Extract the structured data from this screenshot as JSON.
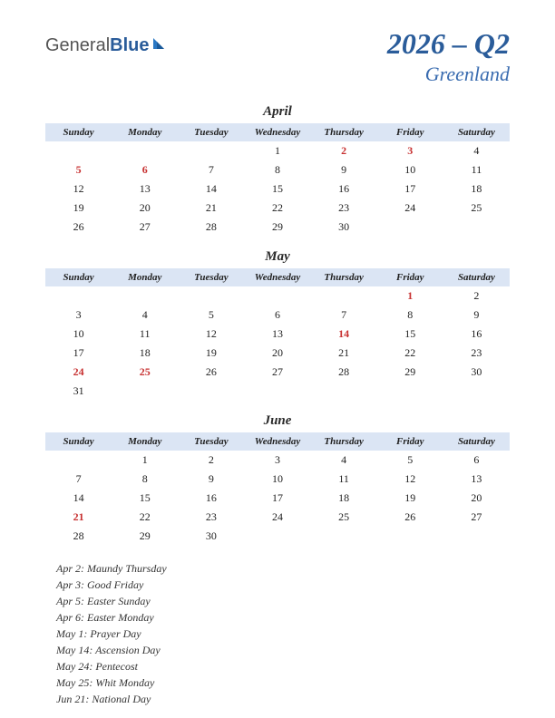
{
  "logo": {
    "part1": "General",
    "part2": "Blue"
  },
  "title": "2026 – Q2",
  "subtitle": "Greenland",
  "day_headers": [
    "Sunday",
    "Monday",
    "Tuesday",
    "Wednesday",
    "Thursday",
    "Friday",
    "Saturday"
  ],
  "colors": {
    "header_bg": "#dbe5f4",
    "title_color": "#2a5c9a",
    "subtitle_color": "#3a6cb0",
    "holiday_color": "#c73030",
    "text_color": "#222222",
    "background": "#ffffff"
  },
  "months": [
    {
      "name": "April",
      "weeks": [
        [
          null,
          null,
          null,
          {
            "d": 1
          },
          {
            "d": 2,
            "h": true
          },
          {
            "d": 3,
            "h": true
          },
          {
            "d": 4
          }
        ],
        [
          {
            "d": 5,
            "h": true
          },
          {
            "d": 6,
            "h": true
          },
          {
            "d": 7
          },
          {
            "d": 8
          },
          {
            "d": 9
          },
          {
            "d": 10
          },
          {
            "d": 11
          }
        ],
        [
          {
            "d": 12
          },
          {
            "d": 13
          },
          {
            "d": 14
          },
          {
            "d": 15
          },
          {
            "d": 16
          },
          {
            "d": 17
          },
          {
            "d": 18
          }
        ],
        [
          {
            "d": 19
          },
          {
            "d": 20
          },
          {
            "d": 21
          },
          {
            "d": 22
          },
          {
            "d": 23
          },
          {
            "d": 24
          },
          {
            "d": 25
          }
        ],
        [
          {
            "d": 26
          },
          {
            "d": 27
          },
          {
            "d": 28
          },
          {
            "d": 29
          },
          {
            "d": 30
          },
          null,
          null
        ]
      ]
    },
    {
      "name": "May",
      "weeks": [
        [
          null,
          null,
          null,
          null,
          null,
          {
            "d": 1,
            "h": true
          },
          {
            "d": 2
          }
        ],
        [
          {
            "d": 3
          },
          {
            "d": 4
          },
          {
            "d": 5
          },
          {
            "d": 6
          },
          {
            "d": 7
          },
          {
            "d": 8
          },
          {
            "d": 9
          }
        ],
        [
          {
            "d": 10
          },
          {
            "d": 11
          },
          {
            "d": 12
          },
          {
            "d": 13
          },
          {
            "d": 14,
            "h": true
          },
          {
            "d": 15
          },
          {
            "d": 16
          }
        ],
        [
          {
            "d": 17
          },
          {
            "d": 18
          },
          {
            "d": 19
          },
          {
            "d": 20
          },
          {
            "d": 21
          },
          {
            "d": 22
          },
          {
            "d": 23
          }
        ],
        [
          {
            "d": 24,
            "h": true
          },
          {
            "d": 25,
            "h": true
          },
          {
            "d": 26
          },
          {
            "d": 27
          },
          {
            "d": 28
          },
          {
            "d": 29
          },
          {
            "d": 30
          }
        ],
        [
          {
            "d": 31
          },
          null,
          null,
          null,
          null,
          null,
          null
        ]
      ]
    },
    {
      "name": "June",
      "weeks": [
        [
          null,
          {
            "d": 1
          },
          {
            "d": 2
          },
          {
            "d": 3
          },
          {
            "d": 4
          },
          {
            "d": 5
          },
          {
            "d": 6
          }
        ],
        [
          {
            "d": 7
          },
          {
            "d": 8
          },
          {
            "d": 9
          },
          {
            "d": 10
          },
          {
            "d": 11
          },
          {
            "d": 12
          },
          {
            "d": 13
          }
        ],
        [
          {
            "d": 14
          },
          {
            "d": 15
          },
          {
            "d": 16
          },
          {
            "d": 17
          },
          {
            "d": 18
          },
          {
            "d": 19
          },
          {
            "d": 20
          }
        ],
        [
          {
            "d": 21,
            "h": true
          },
          {
            "d": 22
          },
          {
            "d": 23
          },
          {
            "d": 24
          },
          {
            "d": 25
          },
          {
            "d": 26
          },
          {
            "d": 27
          }
        ],
        [
          {
            "d": 28
          },
          {
            "d": 29
          },
          {
            "d": 30
          },
          null,
          null,
          null,
          null
        ]
      ]
    }
  ],
  "holidays": [
    "Apr 2: Maundy Thursday",
    "Apr 3: Good Friday",
    "Apr 5: Easter Sunday",
    "Apr 6: Easter Monday",
    "May 1: Prayer Day",
    "May 14: Ascension Day",
    "May 24: Pentecost",
    "May 25: Whit Monday",
    "Jun 21: National Day"
  ]
}
